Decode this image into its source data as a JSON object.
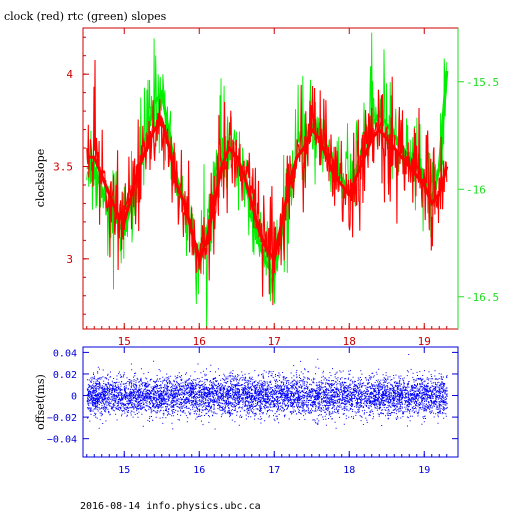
{
  "title": "clock (red) rtc (green) slopes",
  "footer": "2016-08-14 info.physics.ubc.ca",
  "colors": {
    "clock": "#ff0000",
    "rtc": "#00ee00",
    "offset": "#0000ff",
    "top_frame": "#cc0000",
    "right_axis": "#22dd22",
    "bottom_frame": "#0000dd"
  },
  "chart_data": [
    {
      "type": "line",
      "title": "clock (red) rtc (green) slopes",
      "ylabel": "clockslope",
      "xlabel": "",
      "x_range": [
        14.45,
        19.45
      ],
      "ylim": [
        2.62,
        4.25
      ],
      "right_ylim": [
        -16.65,
        -15.25
      ],
      "x_ticks": [
        15,
        16,
        17,
        18,
        19
      ],
      "y_ticks": [
        3,
        3.5,
        4
      ],
      "right_ticks": [
        -15.5,
        -16,
        -16.5
      ],
      "x_tick_labels": [
        "15",
        "16",
        "17",
        "18",
        "19"
      ],
      "y_tick_labels": [
        "3",
        "3.5",
        "4"
      ],
      "right_tick_labels": [
        "-15.5",
        "-16",
        "-16.5"
      ],
      "series": [
        {
          "axis": "left",
          "color": "#ff0000",
          "x": [
            14.5,
            14.6,
            14.7,
            14.8,
            14.9,
            15.0,
            15.1,
            15.2,
            15.3,
            15.4,
            15.5,
            15.6,
            15.7,
            15.8,
            15.9,
            16.0,
            16.1,
            16.2,
            16.3,
            16.4,
            16.5,
            16.6,
            16.7,
            16.8,
            16.9,
            17.0,
            17.1,
            17.2,
            17.3,
            17.4,
            17.5,
            17.6,
            17.7,
            17.8,
            17.9,
            18.0,
            18.1,
            18.2,
            18.3,
            18.4,
            18.5,
            18.6,
            18.7,
            18.8,
            18.9,
            19.0,
            19.1,
            19.2,
            19.3
          ],
          "y": [
            3.55,
            3.55,
            3.45,
            3.35,
            3.25,
            3.2,
            3.35,
            3.5,
            3.6,
            3.7,
            3.75,
            3.6,
            3.4,
            3.3,
            3.15,
            3.0,
            3.1,
            3.3,
            3.5,
            3.6,
            3.55,
            3.45,
            3.3,
            3.15,
            3.05,
            3.0,
            3.2,
            3.4,
            3.55,
            3.6,
            3.7,
            3.65,
            3.55,
            3.45,
            3.4,
            3.35,
            3.45,
            3.55,
            3.65,
            3.7,
            3.65,
            3.6,
            3.55,
            3.5,
            3.45,
            3.4,
            3.3,
            3.35,
            3.5
          ]
        },
        {
          "axis": "right",
          "color": "#00ee00",
          "x": [
            14.5,
            14.6,
            14.7,
            14.8,
            14.9,
            15.0,
            15.1,
            15.2,
            15.3,
            15.4,
            15.5,
            15.6,
            15.7,
            15.8,
            15.9,
            16.0,
            16.1,
            16.2,
            16.3,
            16.4,
            16.5,
            16.6,
            16.7,
            16.8,
            16.9,
            17.0,
            17.1,
            17.2,
            17.3,
            17.4,
            17.5,
            17.6,
            17.7,
            17.8,
            17.9,
            18.0,
            18.1,
            18.2,
            18.3,
            18.4,
            18.5,
            18.6,
            18.7,
            18.8,
            18.9,
            19.0,
            19.1,
            19.2,
            19.3
          ],
          "y": [
            -15.9,
            -15.9,
            -16.0,
            -16.1,
            -16.15,
            -16.2,
            -16.05,
            -15.9,
            -15.75,
            -15.6,
            -15.55,
            -15.75,
            -15.95,
            -16.05,
            -16.2,
            -16.35,
            -16.2,
            -16.0,
            -15.85,
            -15.8,
            -15.85,
            -15.95,
            -16.1,
            -16.25,
            -16.35,
            -16.4,
            -16.2,
            -16.0,
            -15.85,
            -15.8,
            -15.7,
            -15.75,
            -15.8,
            -15.9,
            -15.95,
            -16.0,
            -15.9,
            -15.8,
            -15.7,
            -15.65,
            -15.7,
            -15.75,
            -15.8,
            -15.85,
            -15.9,
            -15.95,
            -16.05,
            -15.9,
            -15.45
          ]
        }
      ]
    },
    {
      "type": "scatter",
      "ylabel": "offset(ms)",
      "xlabel": "",
      "x_range": [
        14.45,
        19.45
      ],
      "ylim": [
        -0.057,
        0.045
      ],
      "x_ticks": [
        15,
        16,
        17,
        18,
        19
      ],
      "y_ticks": [
        0.04,
        0.02,
        0,
        -0.02,
        -0.04
      ],
      "x_tick_labels": [
        "15",
        "16",
        "17",
        "18",
        "19"
      ],
      "y_tick_labels": [
        "0.04",
        "0.02",
        "0",
        "−0.02",
        "−0.04"
      ],
      "series": [
        {
          "color": "#0000ff",
          "x_range": [
            14.5,
            19.3
          ],
          "center": 0.0,
          "spread_sd": 0.009,
          "count": 7000
        }
      ]
    }
  ]
}
